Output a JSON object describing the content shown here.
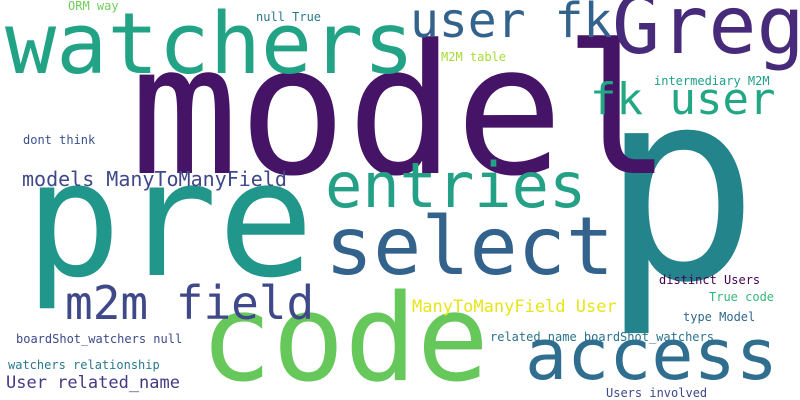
{
  "words": [
    {
      "id": "p",
      "text": "p",
      "color": "#23848c"
    },
    {
      "id": "model",
      "text": "model",
      "color": "#461466"
    },
    {
      "id": "pre",
      "text": "pre",
      "color": "#21968b"
    },
    {
      "id": "code",
      "text": "code",
      "color": "#66c75a"
    },
    {
      "id": "watchers",
      "text": "watchers",
      "color": "#23a386"
    },
    {
      "id": "greg",
      "text": "Greg",
      "color": "#472b7a"
    },
    {
      "id": "select",
      "text": "select",
      "color": "#33628d"
    },
    {
      "id": "access",
      "text": "access",
      "color": "#2f6e8e"
    },
    {
      "id": "entries",
      "text": "entries",
      "color": "#24a086"
    },
    {
      "id": "user_fk",
      "text": "user fk",
      "color": "#33628d"
    },
    {
      "id": "fk_user",
      "text": "fk user",
      "color": "#22a785"
    },
    {
      "id": "m2m_field",
      "text": "m2m field",
      "color": "#3f4889"
    },
    {
      "id": "models_manytomanyfield",
      "text": "models ManyToManyField",
      "color": "#3f4889"
    },
    {
      "id": "manytomanyfield_user",
      "text": "ManyToManyField User",
      "color": "#e8e419"
    },
    {
      "id": "user_related_name",
      "text": "User related_name",
      "color": "#443a83"
    },
    {
      "id": "orm_way",
      "text": "ORM way",
      "color": "#6ece58"
    },
    {
      "id": "null_true",
      "text": "null True",
      "color": "#2a788e"
    },
    {
      "id": "m2m_table",
      "text": "M2M table",
      "color": "#a5db36"
    },
    {
      "id": "intermediary_m2m",
      "text": "intermediary M2M",
      "color": "#1fa088"
    },
    {
      "id": "dont_think",
      "text": "dont think",
      "color": "#3b528b"
    },
    {
      "id": "distinct_users",
      "text": "distinct Users",
      "color": "#440154"
    },
    {
      "id": "true_code",
      "text": "True code",
      "color": "#35b779"
    },
    {
      "id": "type_model",
      "text": "type Model",
      "color": "#31688e"
    },
    {
      "id": "boardshot_watchers_null",
      "text": "boardShot_watchers null",
      "color": "#3e4a89"
    },
    {
      "id": "related_name_boardshot_watchers",
      "text": "related_name boardShot_watchers",
      "color": "#2c728e"
    },
    {
      "id": "watchers_relationship",
      "text": "watchers relationship",
      "color": "#2a788e"
    },
    {
      "id": "users_involved",
      "text": "Users involved",
      "color": "#3e4989"
    }
  ]
}
